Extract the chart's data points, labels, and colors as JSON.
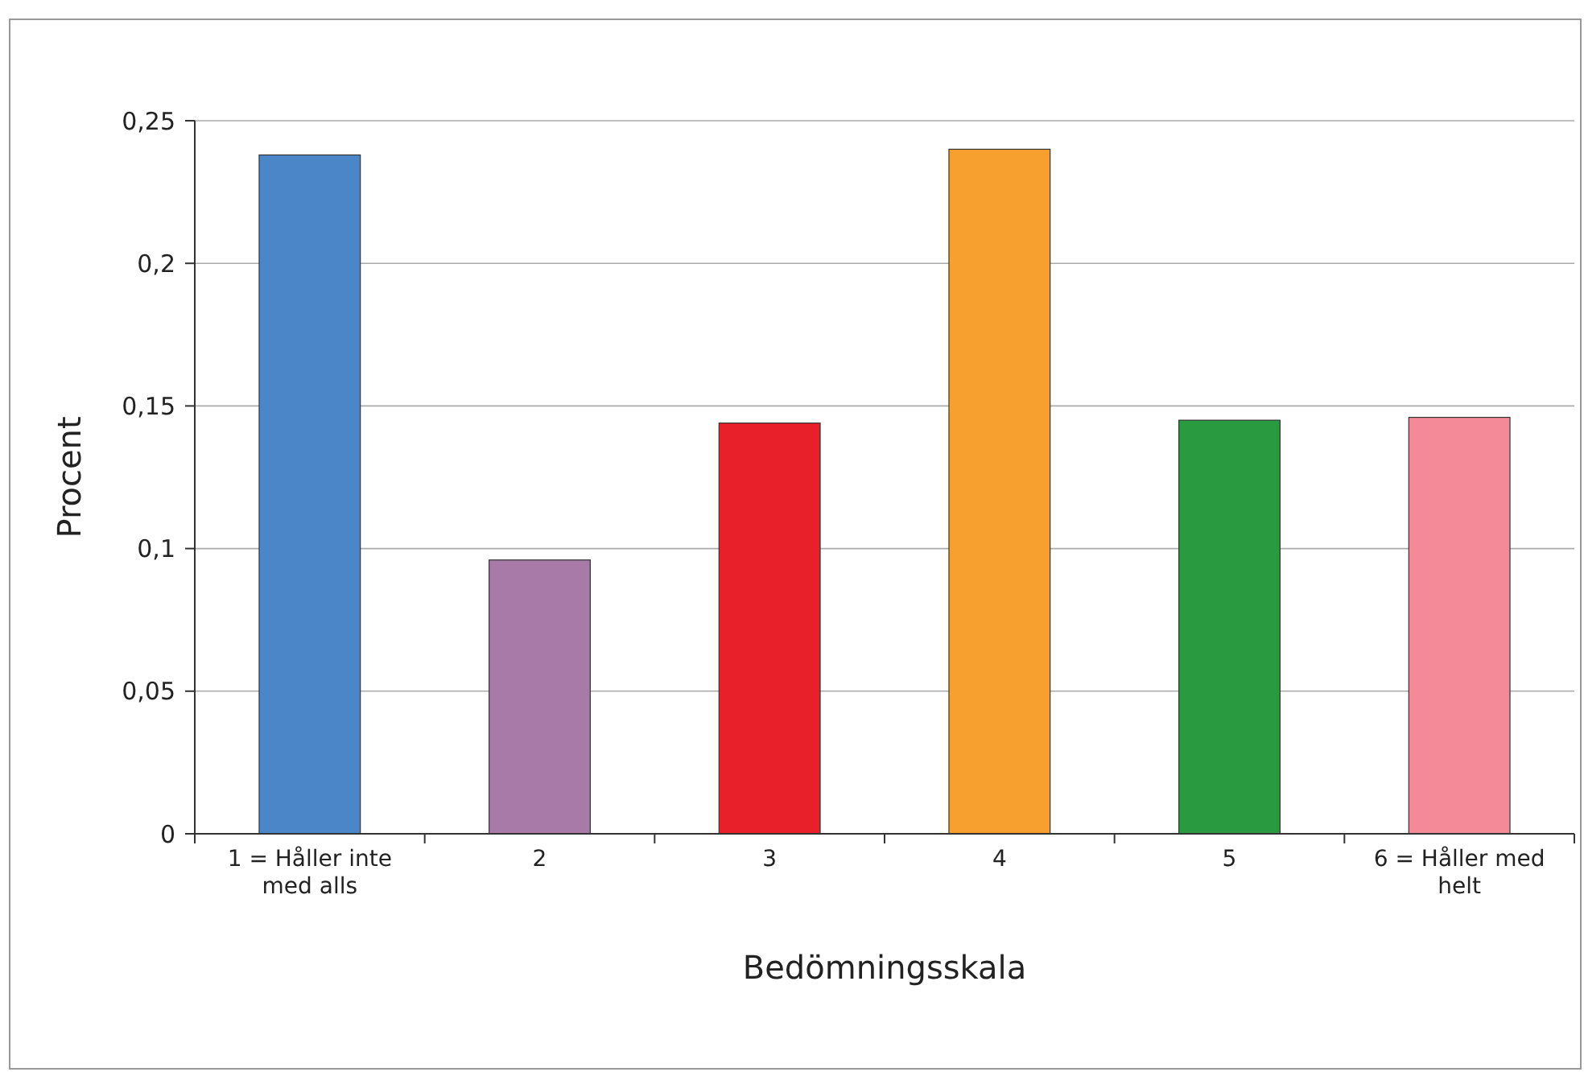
{
  "chart_data": {
    "type": "bar",
    "xlabel": "Bedömningsskala",
    "ylabel": "Procent",
    "categories": [
      "1 = Håller inte med alls",
      "2",
      "3",
      "4",
      "5",
      "6 = Håller med helt"
    ],
    "values": [
      0.238,
      0.096,
      0.144,
      0.24,
      0.145,
      0.146
    ],
    "colors": [
      "#4a86c8",
      "#a87aa8",
      "#e8202a",
      "#f7a030",
      "#2a9a40",
      "#f48a98"
    ],
    "ylim": [
      0,
      0.25
    ],
    "yticks": [
      0,
      {
        "value": 0.05,
        "label": "0,05"
      },
      {
        "value": 0.1,
        "label": "0,1"
      },
      {
        "value": 0.15,
        "label": "0,15"
      },
      {
        "value": 0.2,
        "label": "0,2"
      },
      {
        "value": 0.25,
        "label": "0,25"
      }
    ],
    "grid": "y"
  }
}
